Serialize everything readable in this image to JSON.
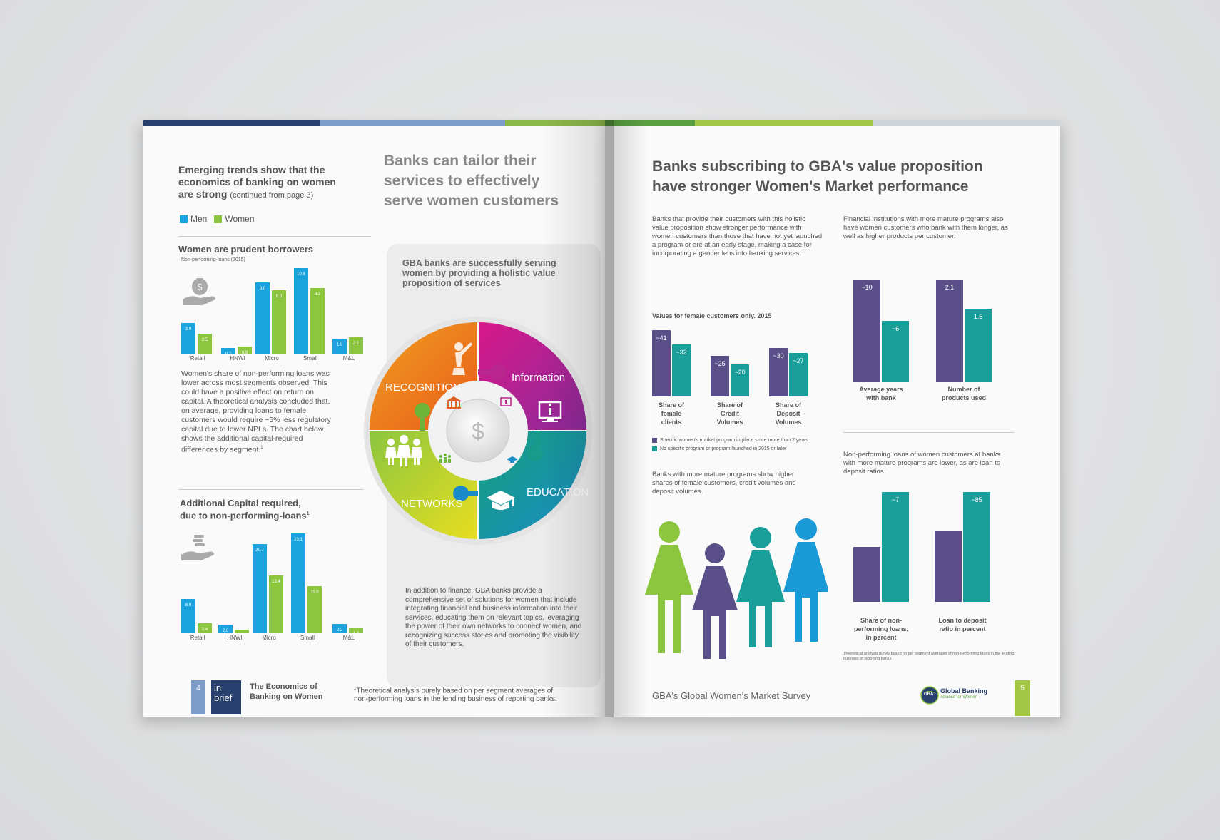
{
  "left_page": {
    "intro_heading": "Emerging trends show that the economics of banking on women are strong",
    "intro_suffix": "(continued from page 3)",
    "legend": {
      "men": "Men",
      "women": "Women"
    },
    "colors": {
      "men": "#1aa3dd",
      "women": "#8cc63f",
      "purple": "#5b4f8a",
      "teal": "#1a9e9a"
    },
    "chart1": {
      "title": "Women are prudent borrowers",
      "subtitle": "Non-performing-loans (2015)",
      "categories": [
        "Retail",
        "HNWI",
        "Micro",
        "Small",
        "M&L"
      ],
      "men": [
        3.9,
        0.7,
        9.0,
        10.8,
        1.9
      ],
      "women": [
        2.5,
        0.9,
        8.0,
        8.3,
        2.1
      ],
      "men_labels": [
        "3.9",
        "0.7",
        "9.0",
        "10.8",
        "1.9"
      ],
      "women_labels": [
        "2.5",
        "0.9",
        "8.0",
        "8.3",
        "2.1"
      ]
    },
    "chart1_text": "Women's share of non-performing loans was lower across most segments observed. This could have a positive effect on return on capital. A theoretical analysis concluded that, on average, providing loans to female customers would require ~5% less regulatory capital due to lower NPLs. The chart below shows the additional capital-required differences by segment.",
    "chart1_text_sup": "1",
    "chart2": {
      "title_line1": "Additional Capital required,",
      "title_line2": "due to non-performing-loans",
      "title_sup": "1",
      "categories": [
        "Retail",
        "HNWI",
        "Micro",
        "Small",
        "M&L"
      ],
      "men": [
        8.0,
        2.0,
        20.7,
        23.1,
        2.2
      ],
      "women": [
        2.4,
        0.8,
        13.4,
        11.0,
        1.3
      ],
      "men_labels": [
        "8.0",
        "2.0",
        "20.7",
        "23.1",
        "2.2"
      ],
      "women_labels": [
        "2.4",
        "0.8",
        "13.4",
        "11.0",
        "1.3"
      ]
    },
    "big_heading": "Banks can tailor their services to effectively serve women customers",
    "panel_heading": "GBA banks are successfully serving women by providing a holistic value proposition of services",
    "wheel": {
      "center_symbol": "$",
      "segments": [
        "RECOGNITION",
        "Information",
        "EDUCATION",
        "NETWORKS"
      ]
    },
    "panel_text": "In addition to finance, GBA banks provide a comprehensive set of solutions for women that include integrating financial and business information into their services, educating them on relevant topics, leveraging the power of their own networks to connect women, and recognizing success stories and promoting the visibility of their customers.",
    "footer": {
      "page_number": "4",
      "badge_line1": "in",
      "badge_line2": "brief",
      "title_line1": "The Economics of",
      "title_line2": "Banking on Women",
      "footnote_sup": "1",
      "footnote": "Theoretical analysis purely based on per segment averages of non-performing loans in the lending business of reporting banks."
    }
  },
  "right_page": {
    "heading_line1": "Banks subscribing to GBA's value proposition",
    "heading_line2": "have stronger Women's Market performance",
    "col1_text": "Banks that provide their customers with this holistic value proposition show stronger performance with women customers than those that have not yet launched a program or are at an early stage, making a case for incorporating a gender lens into banking services.",
    "col2_text": "Financial institutions with more mature programs also have women customers who bank with them longer, as well as higher products per customer.",
    "chart3": {
      "title": "Values for female customers only. 2015",
      "categories": [
        "Share of female clients",
        "Share of Credit Volumes",
        "Share of Deposit Volumes"
      ],
      "category_lines": [
        [
          "Share of",
          "female",
          "clients"
        ],
        [
          "Share of",
          "Credit",
          "Volumes"
        ],
        [
          "Share of",
          "Deposit",
          "Volumes"
        ]
      ],
      "specific": [
        41,
        25,
        30
      ],
      "none": [
        32,
        20,
        27
      ],
      "specific_labels": [
        "~41",
        "~25",
        "~30"
      ],
      "none_labels": [
        "~32",
        "~20",
        "~27"
      ]
    },
    "legend_specific": "Specific women's market program in place since more than 2 years",
    "legend_none": "No specific program or program launched in 2015 or later",
    "chart3_text": "Banks with more mature programs show higher shares of female customers, credit volumes and deposit volumes.",
    "chart4": {
      "groups": [
        {
          "lines": [
            "Average years",
            "with bank"
          ],
          "specific": 10,
          "none": 6,
          "specific_label": "~10",
          "none_label": "~6"
        },
        {
          "lines": [
            "Number of",
            "products used"
          ],
          "specific": 2.1,
          "none": 1.5,
          "specific_label": "2,1",
          "none_label": "1,5"
        }
      ]
    },
    "chart5_intro": "Non-performing loans of women customers at banks with more mature programs are lower, as are loan to deposit ratios.",
    "chart5": {
      "groups": [
        {
          "lines": [
            "Share of non-",
            "performing loans,",
            "in percent"
          ],
          "specific": 3.5,
          "none": 7,
          "none_label": "~7"
        },
        {
          "lines": [
            "Loan to deposit",
            "ratio in percent"
          ],
          "specific": 55,
          "none": 85,
          "none_label": "~85"
        }
      ]
    },
    "footnote": "Theoretical analysis purely based on per segment averages of non-performing loans in the lending business of reporting banks.",
    "footer_title": "GBA's Global Women's Market Survey",
    "logo_line1": "Global Banking",
    "logo_line2": "Alliance for Women",
    "logo_mark": "GBA",
    "page_number": "5"
  }
}
